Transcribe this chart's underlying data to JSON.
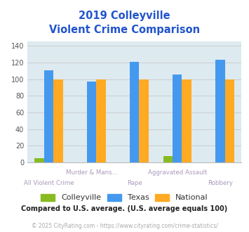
{
  "title_line1": "2019 Colleyville",
  "title_line2": "Violent Crime Comparison",
  "title_color": "#2255cc",
  "colleyville_values": [
    5,
    0,
    0,
    8,
    0
  ],
  "texas_values": [
    111,
    97,
    121,
    106,
    123
  ],
  "national_values": [
    100,
    100,
    100,
    100,
    100
  ],
  "colleyville_color": "#88bb22",
  "texas_color": "#4499ee",
  "national_color": "#ffaa22",
  "ylim": [
    0,
    145
  ],
  "yticks": [
    0,
    20,
    40,
    60,
    80,
    100,
    120,
    140
  ],
  "plot_bg_color": "#ddeaf0",
  "grid_color": "#bbbbbb",
  "cat_labels_top": [
    "",
    "Murder & Mans...",
    "",
    "Aggravated Assault",
    ""
  ],
  "cat_labels_bot": [
    "All Violent Crime",
    "",
    "Rape",
    "",
    "Robbery"
  ],
  "legend_labels": [
    "Colleyville",
    "Texas",
    "National"
  ],
  "footer_text": "Compared to U.S. average. (U.S. average equals 100)",
  "footer_color": "#222222",
  "credit_text": "© 2025 CityRating.com - https://www.cityrating.com/crime-statistics/",
  "credit_color": "#aaaaaa",
  "x_label_color": "#aa99bb"
}
